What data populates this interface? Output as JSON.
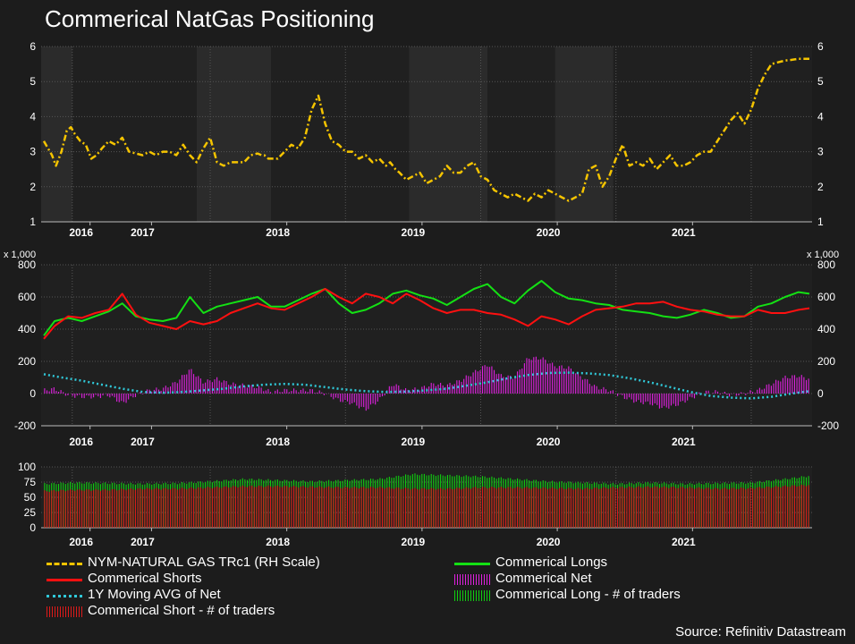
{
  "title": "Commerical NatGas Positioning",
  "source": "Source: Refinitiv Datastream",
  "colors": {
    "background": "#1c1c1c",
    "plot_background": "#202020",
    "shade": "#2b2b2b",
    "grid": "#555555",
    "price": "#f5c400",
    "longs": "#14e014",
    "shorts": "#ff1010",
    "net": "#e020e0",
    "net_ma": "#30c8d8",
    "long_traders": "#10d010",
    "short_traders": "#dd1a1a"
  },
  "legend": [
    {
      "key": "price",
      "label": "NYM-NATURAL GAS TRc1 (RH Scale)",
      "style": "dashdot"
    },
    {
      "key": "shorts",
      "label": "Commerical Shorts",
      "style": "line"
    },
    {
      "key": "net_ma",
      "label": "1Y Moving AVG of Net",
      "style": "dotted"
    },
    {
      "key": "short_traders",
      "label": "Commerical Short - # of traders",
      "style": "bars"
    },
    {
      "key": "longs",
      "label": "Commerical Longs",
      "style": "line"
    },
    {
      "key": "net",
      "label": "Commerical Net",
      "style": "bars"
    },
    {
      "key": "long_traders",
      "label": "Commerical Long - # of traders",
      "style": "bars"
    }
  ],
  "chart_data": [
    {
      "type": "line",
      "panel": "price",
      "x_range": [
        2015.75,
        2021.45
      ],
      "year_ticks": [
        "2016",
        "2017",
        "2018",
        "2019",
        "2020",
        "2021"
      ],
      "year_tick_x": [
        2015.9,
        2016.5,
        2017.5,
        2018.5,
        2019.5,
        2020.5
      ],
      "ylim": [
        1,
        6
      ],
      "yticks": [
        "1",
        "2",
        "3",
        "4",
        "5",
        "6"
      ],
      "grid": true,
      "series": [
        {
          "name": "NYM-NATURAL GAS TRc1 (RH Scale)",
          "x": [
            2015.77,
            2015.8,
            2015.83,
            2015.86,
            2015.9,
            2015.94,
            2015.97,
            2016.0,
            2016.04,
            2016.08,
            2016.12,
            2016.16,
            2016.2,
            2016.25,
            2016.3,
            2016.35,
            2016.4,
            2016.45,
            2016.5,
            2016.55,
            2016.6,
            2016.65,
            2016.7,
            2016.75,
            2016.8,
            2016.85,
            2016.9,
            2016.95,
            2017.0,
            2017.05,
            2017.1,
            2017.15,
            2017.2,
            2017.25,
            2017.3,
            2017.35,
            2017.38,
            2017.4,
            2017.43,
            2017.46,
            2017.5,
            2017.55,
            2017.6,
            2017.65,
            2017.7,
            2017.75,
            2017.8,
            2017.85,
            2017.9,
            2017.95,
            2018.0,
            2018.05,
            2018.1,
            2018.15,
            2018.2,
            2018.25,
            2018.3,
            2018.33,
            2018.37,
            2018.4,
            2018.45,
            2018.5,
            2018.55,
            2018.6,
            2018.65,
            2018.7,
            2018.75,
            2018.8,
            2018.85,
            2018.9,
            2018.95,
            2019.0,
            2019.05,
            2019.1,
            2019.15,
            2019.2,
            2019.25,
            2019.3,
            2019.35,
            2019.4,
            2019.45,
            2019.5,
            2019.55,
            2019.6,
            2019.65,
            2019.7,
            2019.75,
            2019.8,
            2019.85,
            2019.9,
            2019.95,
            2020.0,
            2020.05,
            2020.1,
            2020.15,
            2020.2,
            2020.25,
            2020.3,
            2020.35,
            2020.4,
            2020.45,
            2020.5,
            2020.55,
            2020.6,
            2020.65,
            2020.7,
            2020.75,
            2020.8,
            2020.85,
            2020.9,
            2020.95,
            2021.0,
            2021.05,
            2021.1,
            2021.15,
            2021.2,
            2021.25,
            2021.3,
            2021.35,
            2021.4,
            2021.43
          ],
          "values": [
            3.3,
            3.1,
            2.9,
            2.6,
            3.0,
            3.6,
            3.7,
            3.5,
            3.3,
            3.2,
            2.8,
            2.9,
            3.1,
            3.3,
            3.2,
            3.4,
            3.0,
            2.95,
            2.9,
            3.0,
            2.9,
            3.0,
            3.0,
            2.9,
            3.2,
            2.9,
            2.7,
            3.1,
            3.4,
            2.7,
            2.6,
            2.7,
            2.7,
            2.7,
            2.9,
            2.95,
            2.9,
            2.9,
            2.8,
            2.8,
            2.8,
            3.0,
            3.2,
            3.1,
            3.4,
            4.2,
            4.6,
            3.8,
            3.3,
            3.2,
            3.0,
            3.0,
            2.8,
            2.9,
            2.7,
            2.8,
            2.6,
            2.7,
            2.5,
            2.4,
            2.2,
            2.3,
            2.4,
            2.1,
            2.2,
            2.3,
            2.6,
            2.4,
            2.4,
            2.6,
            2.7,
            2.3,
            2.2,
            1.9,
            1.8,
            1.7,
            1.8,
            1.7,
            1.6,
            1.8,
            1.7,
            1.9,
            1.8,
            1.7,
            1.6,
            1.7,
            1.8,
            2.5,
            2.6,
            2.0,
            2.3,
            2.8,
            3.2,
            2.6,
            2.7,
            2.6,
            2.8,
            2.5,
            2.7,
            2.9,
            2.6,
            2.6,
            2.7,
            2.9,
            3.0,
            3.0,
            3.3,
            3.6,
            3.9,
            4.1,
            3.8,
            4.2,
            4.8,
            5.2,
            5.5,
            5.55,
            5.6,
            5.62,
            5.65,
            5.65,
            5.65
          ]
        }
      ]
    },
    {
      "type": "line",
      "panel": "positions",
      "x_range": [
        2015.75,
        2021.45
      ],
      "year_ticks": [
        "2016",
        "2017",
        "2018",
        "2019",
        "2020",
        "2021"
      ],
      "year_tick_x": [
        2015.9,
        2016.5,
        2017.5,
        2018.5,
        2019.5,
        2020.5
      ],
      "ylim": [
        -200,
        800
      ],
      "yticks": [
        "-200",
        "0",
        "200",
        "400",
        "600",
        "800"
      ],
      "units_label": "x 1,000",
      "grid": true,
      "series": [
        {
          "name": "Commerical Longs",
          "x": [
            2015.77,
            2015.85,
            2015.95,
            2016.05,
            2016.15,
            2016.25,
            2016.35,
            2016.45,
            2016.55,
            2016.65,
            2016.75,
            2016.85,
            2016.95,
            2017.05,
            2017.15,
            2017.25,
            2017.35,
            2017.45,
            2017.55,
            2017.65,
            2017.75,
            2017.85,
            2017.95,
            2018.05,
            2018.15,
            2018.25,
            2018.35,
            2018.45,
            2018.55,
            2018.65,
            2018.75,
            2018.85,
            2018.95,
            2019.05,
            2019.15,
            2019.25,
            2019.35,
            2019.45,
            2019.55,
            2019.65,
            2019.75,
            2019.85,
            2019.95,
            2020.05,
            2020.15,
            2020.25,
            2020.35,
            2020.45,
            2020.55,
            2020.65,
            2020.75,
            2020.85,
            2020.95,
            2021.05,
            2021.15,
            2021.25,
            2021.35,
            2021.43
          ],
          "values": [
            360,
            450,
            470,
            450,
            480,
            510,
            560,
            480,
            460,
            450,
            470,
            600,
            500,
            540,
            560,
            580,
            600,
            540,
            540,
            580,
            620,
            650,
            560,
            500,
            520,
            560,
            620,
            640,
            610,
            590,
            550,
            600,
            650,
            680,
            600,
            560,
            640,
            700,
            630,
            590,
            580,
            560,
            550,
            520,
            510,
            500,
            480,
            470,
            490,
            520,
            500,
            470,
            480,
            540,
            560,
            600,
            630,
            620
          ]
        },
        {
          "name": "Commerical Shorts",
          "x": [
            2015.77,
            2015.85,
            2015.95,
            2016.05,
            2016.15,
            2016.25,
            2016.35,
            2016.45,
            2016.55,
            2016.65,
            2016.75,
            2016.85,
            2016.95,
            2017.05,
            2017.15,
            2017.25,
            2017.35,
            2017.45,
            2017.55,
            2017.65,
            2017.75,
            2017.85,
            2017.95,
            2018.05,
            2018.15,
            2018.25,
            2018.35,
            2018.45,
            2018.55,
            2018.65,
            2018.75,
            2018.85,
            2018.95,
            2019.05,
            2019.15,
            2019.25,
            2019.35,
            2019.45,
            2019.55,
            2019.65,
            2019.75,
            2019.85,
            2019.95,
            2020.05,
            2020.15,
            2020.25,
            2020.35,
            2020.45,
            2020.55,
            2020.65,
            2020.75,
            2020.85,
            2020.95,
            2021.05,
            2021.15,
            2021.25,
            2021.35,
            2021.43
          ],
          "values": [
            340,
            420,
            480,
            470,
            500,
            520,
            620,
            490,
            440,
            420,
            400,
            450,
            430,
            450,
            500,
            530,
            560,
            530,
            520,
            560,
            600,
            650,
            600,
            560,
            620,
            600,
            560,
            620,
            580,
            530,
            500,
            520,
            520,
            500,
            490,
            460,
            420,
            480,
            460,
            430,
            480,
            520,
            530,
            540,
            560,
            560,
            570,
            540,
            520,
            510,
            490,
            480,
            480,
            520,
            500,
            500,
            520,
            530
          ]
        },
        {
          "name": "Commerical Net",
          "type": "bar",
          "x": [
            2015.77,
            2015.85,
            2015.95,
            2016.05,
            2016.15,
            2016.25,
            2016.35,
            2016.45,
            2016.55,
            2016.65,
            2016.75,
            2016.85,
            2016.95,
            2017.05,
            2017.15,
            2017.25,
            2017.35,
            2017.45,
            2017.55,
            2017.65,
            2017.75,
            2017.85,
            2017.95,
            2018.05,
            2018.15,
            2018.25,
            2018.35,
            2018.45,
            2018.55,
            2018.65,
            2018.75,
            2018.85,
            2018.95,
            2019.05,
            2019.15,
            2019.25,
            2019.35,
            2019.45,
            2019.55,
            2019.65,
            2019.75,
            2019.85,
            2019.95,
            2020.05,
            2020.15,
            2020.25,
            2020.35,
            2020.45,
            2020.55,
            2020.65,
            2020.75,
            2020.85,
            2020.95,
            2021.05,
            2021.15,
            2021.25,
            2021.35,
            2021.43
          ],
          "values": [
            20,
            30,
            -10,
            -20,
            -20,
            -10,
            -60,
            -10,
            20,
            30,
            70,
            150,
            70,
            90,
            60,
            50,
            40,
            10,
            20,
            20,
            20,
            0,
            -40,
            -60,
            -100,
            -40,
            60,
            20,
            30,
            60,
            50,
            80,
            130,
            180,
            110,
            100,
            220,
            220,
            170,
            160,
            100,
            40,
            20,
            -20,
            -50,
            -60,
            -90,
            -70,
            -30,
            10,
            10,
            -10,
            0,
            20,
            60,
            100,
            110,
            90
          ]
        },
        {
          "name": "1Y Moving AVG of Net",
          "x": [
            2015.77,
            2015.9,
            2016.05,
            2016.2,
            2016.35,
            2016.5,
            2016.65,
            2016.8,
            2016.95,
            2017.1,
            2017.25,
            2017.4,
            2017.55,
            2017.7,
            2017.85,
            2018.0,
            2018.15,
            2018.3,
            2018.45,
            2018.6,
            2018.75,
            2018.9,
            2019.05,
            2019.2,
            2019.35,
            2019.5,
            2019.65,
            2019.8,
            2019.95,
            2020.1,
            2020.25,
            2020.4,
            2020.55,
            2020.7,
            2020.85,
            2021.0,
            2021.15,
            2021.3,
            2021.43
          ],
          "values": [
            120,
            100,
            80,
            55,
            30,
            10,
            5,
            10,
            20,
            30,
            45,
            55,
            60,
            55,
            40,
            25,
            15,
            10,
            12,
            20,
            30,
            50,
            70,
            95,
            115,
            128,
            130,
            125,
            115,
            95,
            70,
            40,
            10,
            -15,
            -25,
            -30,
            -20,
            0,
            15
          ]
        }
      ]
    },
    {
      "type": "bar",
      "panel": "traders",
      "x_range": [
        2015.75,
        2021.45
      ],
      "year_ticks": [
        "2016",
        "2017",
        "2018",
        "2019",
        "2020",
        "2021"
      ],
      "year_tick_x": [
        2015.9,
        2016.5,
        2017.5,
        2018.5,
        2019.5,
        2020.5
      ],
      "ylim": [
        0,
        100
      ],
      "yticks": [
        "0",
        "25",
        "50",
        "75",
        "100"
      ],
      "grid": true,
      "series": [
        {
          "name": "Commerical Long - # of traders",
          "x": [
            2015.77,
            2016.0,
            2016.25,
            2016.5,
            2016.75,
            2017.0,
            2017.25,
            2017.5,
            2017.75,
            2018.0,
            2018.25,
            2018.5,
            2018.75,
            2019.0,
            2019.25,
            2019.5,
            2019.75,
            2020.0,
            2020.25,
            2020.5,
            2020.75,
            2021.0,
            2021.25,
            2021.43
          ],
          "values": [
            72,
            74,
            73,
            72,
            73,
            76,
            80,
            78,
            76,
            78,
            80,
            88,
            86,
            84,
            80,
            76,
            74,
            72,
            74,
            72,
            73,
            74,
            80,
            85
          ]
        },
        {
          "name": "Commerical Short - # of traders",
          "x": [
            2015.77,
            2016.0,
            2016.25,
            2016.5,
            2016.75,
            2017.0,
            2017.25,
            2017.5,
            2017.75,
            2018.0,
            2018.25,
            2018.5,
            2018.75,
            2019.0,
            2019.25,
            2019.5,
            2019.75,
            2020.0,
            2020.25,
            2020.5,
            2020.75,
            2021.0,
            2021.25,
            2021.43
          ],
          "values": [
            60,
            62,
            62,
            64,
            64,
            66,
            68,
            68,
            67,
            66,
            66,
            64,
            64,
            66,
            66,
            65,
            64,
            66,
            67,
            66,
            64,
            65,
            68,
            70
          ]
        }
      ]
    }
  ]
}
